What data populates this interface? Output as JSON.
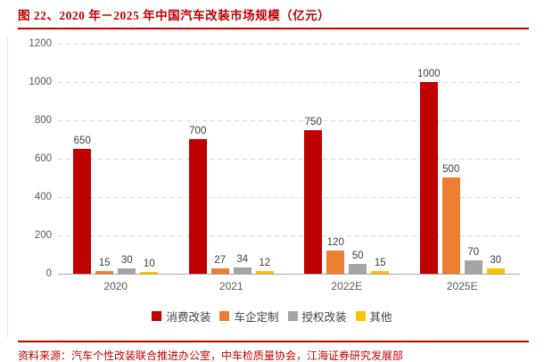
{
  "figure": {
    "title": "图 22、2020 年－2025 年中国汽车改装市场规模（亿元）",
    "source_note": "资料来源：汽车个性改装联合推进办公室，中车检质量协会，江海证券研究发展部"
  },
  "colors": {
    "title_red": "#c00000",
    "rule_red": "#c00000",
    "gridline": "#d9d9d9",
    "axis_text": "#595959",
    "value_label_text": "#404040",
    "series_red": "#c00000",
    "series_orange": "#ed7d31",
    "series_gray": "#a5a5a5",
    "series_yellow": "#ffc000"
  },
  "chart_data": {
    "type": "bar",
    "title": "2020 年－2025 年中国汽车改装市场规模（亿元）",
    "categories": [
      "2020",
      "2021",
      "2022E",
      "2025E"
    ],
    "series": [
      {
        "name": "消费改装",
        "color": "#c00000",
        "values": [
          650,
          700,
          750,
          1000
        ]
      },
      {
        "name": "车企定制",
        "color": "#ed7d31",
        "values": [
          15,
          27,
          120,
          500
        ]
      },
      {
        "name": "授权改装",
        "color": "#a5a5a5",
        "values": [
          30,
          34,
          50,
          70
        ]
      },
      {
        "name": "其他",
        "color": "#ffc000",
        "values": [
          10,
          12,
          15,
          30
        ]
      }
    ],
    "xlabel": "",
    "ylabel": "",
    "ylim": [
      0,
      1200
    ],
    "yticks": [
      0,
      200,
      400,
      600,
      800,
      1000,
      1200
    ],
    "grid": "horizontal-dashed",
    "legend_position": "bottom",
    "value_labels_shown": true
  }
}
